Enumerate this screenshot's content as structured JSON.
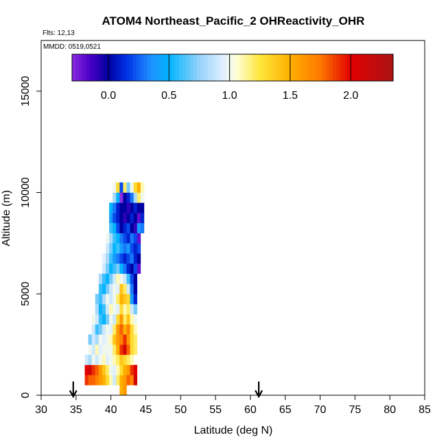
{
  "chart_data": {
    "type": "heatmap",
    "title": "ATOM4 Northeast_Pacific_2 OHReactivity_OHR",
    "flights_label": "Flts: 12,13",
    "date_label": "MMDD: 0519,0521",
    "xlabel": "Latitude (deg N)",
    "ylabel": "Altitude (m)",
    "xlim": [
      30,
      85
    ],
    "ylim": [
      0,
      17500
    ],
    "x_ticks": [
      "30",
      "35",
      "40",
      "45",
      "50",
      "55",
      "60",
      "65",
      "70",
      "75",
      "80",
      "85"
    ],
    "y_ticks": [
      "0",
      "5000",
      "10000",
      "15000"
    ],
    "colorbar": {
      "range": [
        -0.3,
        2.35
      ],
      "ticks": [
        "0.0",
        "0.5",
        "1.0",
        "1.5",
        "2.0"
      ],
      "tick_values": [
        0.0,
        0.5,
        1.0,
        1.5,
        2.0
      ]
    },
    "arrows_latitude": [
      34.6,
      61.2
    ],
    "cell_size": {
      "lat": 0.5,
      "alt": 500
    },
    "rows": [
      {
        "alt": 250,
        "cells": [
          [
            41.5,
            1.5
          ],
          [
            42.0,
            1.6
          ]
        ]
      },
      {
        "alt": 750,
        "cells": [
          [
            36.5,
            1.9
          ],
          [
            37.0,
            1.8
          ],
          [
            37.5,
            1.8
          ],
          [
            38.0,
            1.7
          ],
          [
            38.5,
            1.6
          ],
          [
            39.0,
            1.5
          ],
          [
            39.5,
            1.3
          ],
          [
            40.0,
            1.1
          ],
          [
            40.5,
            0.9
          ],
          [
            41.0,
            1.2
          ],
          [
            41.5,
            1.5
          ],
          [
            42.0,
            1.6
          ],
          [
            42.5,
            1.8
          ],
          [
            43.0,
            1.7
          ],
          [
            43.5,
            2.1
          ]
        ]
      },
      {
        "alt": 1250,
        "cells": [
          [
            36.5,
            2.0
          ],
          [
            37.0,
            2.1
          ],
          [
            37.5,
            1.9
          ],
          [
            38.0,
            1.8
          ],
          [
            38.5,
            1.6
          ],
          [
            39.0,
            1.4
          ],
          [
            39.5,
            1.2
          ],
          [
            40.0,
            1.0
          ],
          [
            40.5,
            0.95
          ],
          [
            41.0,
            1.1
          ],
          [
            41.5,
            1.3
          ],
          [
            42.0,
            1.5
          ],
          [
            42.5,
            1.6
          ],
          [
            43.0,
            1.9
          ],
          [
            43.5,
            2.0
          ]
        ]
      },
      {
        "alt": 1750,
        "cells": [
          [
            36.5,
            0.9
          ],
          [
            37.0,
            0.8
          ],
          [
            37.5,
            1.0
          ],
          [
            38.0,
            0.9
          ],
          [
            38.5,
            1.0
          ],
          [
            39.0,
            1.1
          ],
          [
            39.5,
            0.95
          ],
          [
            40.0,
            1.0
          ],
          [
            40.5,
            1.1
          ],
          [
            41.0,
            1.2
          ],
          [
            41.5,
            1.4
          ],
          [
            42.0,
            1.3
          ],
          [
            42.5,
            1.2
          ],
          [
            43.0,
            1.1
          ]
        ]
      },
      {
        "alt": 2250,
        "cells": [
          [
            37.0,
            1.0
          ],
          [
            37.5,
            0.9
          ],
          [
            38.0,
            1.1
          ],
          [
            38.5,
            0.95
          ],
          [
            39.0,
            1.0
          ],
          [
            39.5,
            1.0
          ],
          [
            40.0,
            1.0
          ],
          [
            40.5,
            1.2
          ],
          [
            41.0,
            1.5
          ],
          [
            41.5,
            1.9
          ],
          [
            42.0,
            2.1
          ],
          [
            42.5,
            1.8
          ],
          [
            43.0,
            1.3
          ],
          [
            43.5,
            1.2
          ]
        ]
      },
      {
        "alt": 2750,
        "cells": [
          [
            37.0,
            0.7
          ],
          [
            37.5,
            0.9
          ],
          [
            38.0,
            0.8
          ],
          [
            38.5,
            1.0
          ],
          [
            39.0,
            0.95
          ],
          [
            39.5,
            1.0
          ],
          [
            40.0,
            1.1
          ],
          [
            40.5,
            1.4
          ],
          [
            41.0,
            1.6
          ],
          [
            41.5,
            1.7
          ],
          [
            42.0,
            1.9
          ],
          [
            42.5,
            1.6
          ],
          [
            43.0,
            1.3
          ],
          [
            43.5,
            1.2
          ]
        ]
      },
      {
        "alt": 3250,
        "cells": [
          [
            37.5,
            0.9
          ],
          [
            38.0,
            0.6
          ],
          [
            38.5,
            0.7
          ],
          [
            39.0,
            0.9
          ],
          [
            39.5,
            1.0
          ],
          [
            40.0,
            0.95
          ],
          [
            40.5,
            1.2
          ],
          [
            41.0,
            1.6
          ],
          [
            41.5,
            1.8
          ],
          [
            42.0,
            1.5
          ],
          [
            42.5,
            1.7
          ],
          [
            43.0,
            1.3
          ],
          [
            43.5,
            1.1
          ]
        ]
      },
      {
        "alt": 3750,
        "cells": [
          [
            37.5,
            1.0
          ],
          [
            38.0,
            0.9
          ],
          [
            38.5,
            0.6
          ],
          [
            39.0,
            0.5
          ],
          [
            39.5,
            0.7
          ],
          [
            40.0,
            1.0
          ],
          [
            40.5,
            0.9
          ],
          [
            41.0,
            1.3
          ],
          [
            41.5,
            1.6
          ],
          [
            42.0,
            1.2
          ],
          [
            42.5,
            1.4
          ],
          [
            43.0,
            1.1
          ],
          [
            43.5,
            1.0
          ]
        ]
      },
      {
        "alt": 4250,
        "cells": [
          [
            38.0,
            0.8
          ],
          [
            38.5,
            0.5
          ],
          [
            39.0,
            0.6
          ],
          [
            39.5,
            0.9
          ],
          [
            40.0,
            1.1
          ],
          [
            40.5,
            1.0
          ],
          [
            41.0,
            0.95
          ],
          [
            41.5,
            1.3
          ],
          [
            42.0,
            1.1
          ],
          [
            42.5,
            1.2
          ],
          [
            43.0,
            0.9
          ],
          [
            43.5,
            0.7
          ]
        ]
      },
      {
        "alt": 4750,
        "cells": [
          [
            38.0,
            0.7
          ],
          [
            38.5,
            0.6
          ],
          [
            39.0,
            0.8
          ],
          [
            39.5,
            1.0
          ],
          [
            40.0,
            0.9
          ],
          [
            40.5,
            1.0
          ],
          [
            41.0,
            1.2
          ],
          [
            41.5,
            1.5
          ],
          [
            42.0,
            1.4
          ],
          [
            42.5,
            1.3
          ],
          [
            43.0,
            0.4
          ],
          [
            43.5,
            0.1
          ]
        ]
      },
      {
        "alt": 5250,
        "cells": [
          [
            38.5,
            0.6
          ],
          [
            39.0,
            0.5
          ],
          [
            39.5,
            0.7
          ],
          [
            40.0,
            0.9
          ],
          [
            40.5,
            1.0
          ],
          [
            41.0,
            0.95
          ],
          [
            41.5,
            1.4
          ],
          [
            42.0,
            1.2
          ],
          [
            42.5,
            0.9
          ],
          [
            43.0,
            0.3
          ],
          [
            43.5,
            0.0
          ]
        ]
      },
      {
        "alt": 5750,
        "cells": [
          [
            38.5,
            0.8
          ],
          [
            39.0,
            0.6
          ],
          [
            39.5,
            0.5
          ],
          [
            40.0,
            0.7
          ],
          [
            40.5,
            0.9
          ],
          [
            41.0,
            1.1
          ],
          [
            41.5,
            1.0
          ],
          [
            42.0,
            0.9
          ],
          [
            42.5,
            0.6
          ],
          [
            43.0,
            0.2
          ],
          [
            43.5,
            0.0
          ]
        ]
      },
      {
        "alt": 6250,
        "cells": [
          [
            39.0,
            0.9
          ],
          [
            39.5,
            0.7
          ],
          [
            40.0,
            0.5
          ],
          [
            40.5,
            0.6
          ],
          [
            41.0,
            0.7
          ],
          [
            41.5,
            0.5
          ],
          [
            42.0,
            0.3
          ],
          [
            42.5,
            0.1
          ],
          [
            43.0,
            0.0
          ],
          [
            43.5,
            0.2
          ],
          [
            44.0,
            -0.2
          ]
        ]
      },
      {
        "alt": 6750,
        "cells": [
          [
            39.0,
            0.95
          ],
          [
            39.5,
            0.8
          ],
          [
            40.0,
            0.6
          ],
          [
            40.5,
            0.4
          ],
          [
            41.0,
            0.3
          ],
          [
            41.5,
            0.2
          ],
          [
            42.0,
            0.1
          ],
          [
            42.5,
            0.2
          ],
          [
            43.0,
            0.3
          ],
          [
            43.5,
            0.1
          ],
          [
            44.0,
            0.0
          ]
        ]
      },
      {
        "alt": 7250,
        "cells": [
          [
            39.5,
            0.9
          ],
          [
            40.0,
            0.7
          ],
          [
            40.5,
            0.5
          ],
          [
            41.0,
            0.6
          ],
          [
            41.5,
            0.4
          ],
          [
            42.0,
            0.3
          ],
          [
            42.5,
            0.4
          ],
          [
            43.0,
            0.2
          ],
          [
            43.5,
            0.1
          ],
          [
            44.0,
            0.2
          ]
        ]
      },
      {
        "alt": 7750,
        "cells": [
          [
            39.5,
            1.0
          ],
          [
            40.0,
            0.8
          ],
          [
            40.5,
            0.6
          ],
          [
            41.0,
            0.5
          ],
          [
            41.5,
            0.3
          ],
          [
            42.0,
            0.2
          ],
          [
            42.5,
            0.1
          ],
          [
            43.0,
            0.3
          ],
          [
            43.5,
            0.2
          ],
          [
            44.0,
            -0.2
          ]
        ]
      },
      {
        "alt": 8250,
        "cells": [
          [
            40.0,
            0.6
          ],
          [
            40.5,
            0.5
          ],
          [
            41.0,
            0.2
          ],
          [
            41.5,
            0.0
          ],
          [
            42.0,
            0.1
          ],
          [
            42.5,
            0.2
          ],
          [
            43.0,
            0.0
          ],
          [
            43.5,
            -0.1
          ],
          [
            44.0,
            0.4
          ],
          [
            44.5,
            0.3
          ]
        ]
      },
      {
        "alt": 8750,
        "cells": [
          [
            40.0,
            0.4
          ],
          [
            40.5,
            0.2
          ],
          [
            41.0,
            0.1
          ],
          [
            41.5,
            0.0
          ],
          [
            42.0,
            -0.1
          ],
          [
            42.5,
            0.0
          ],
          [
            43.0,
            0.1
          ],
          [
            43.5,
            0.0
          ],
          [
            44.0,
            -0.2
          ],
          [
            44.5,
            0.1
          ]
        ]
      },
      {
        "alt": 9250,
        "cells": [
          [
            40.0,
            0.5
          ],
          [
            40.5,
            0.3
          ],
          [
            41.0,
            0.1
          ],
          [
            41.5,
            0.0
          ],
          [
            42.0,
            0.0
          ],
          [
            42.5,
            -0.1
          ],
          [
            43.0,
            0.0
          ],
          [
            43.5,
            0.1
          ],
          [
            44.0,
            0.0
          ],
          [
            44.5,
            0.0
          ]
        ]
      },
      {
        "alt": 9750,
        "cells": [
          [
            40.5,
            0.8
          ],
          [
            41.0,
            0.5
          ],
          [
            41.5,
            -0.3
          ],
          [
            42.0,
            0.0
          ],
          [
            42.5,
            0.1
          ],
          [
            43.0,
            0.3
          ],
          [
            43.5,
            0.8
          ],
          [
            44.0,
            1.2
          ],
          [
            44.5,
            1.0
          ]
        ]
      },
      {
        "alt": 10250,
        "cells": [
          [
            40.5,
            1.0
          ],
          [
            41.0,
            1.3
          ],
          [
            41.5,
            0.2
          ],
          [
            42.0,
            1.2
          ],
          [
            42.5,
            0.7
          ],
          [
            43.0,
            1.0
          ],
          [
            43.5,
            1.3
          ],
          [
            44.0,
            1.5
          ],
          [
            44.5,
            1.1
          ]
        ]
      }
    ]
  }
}
